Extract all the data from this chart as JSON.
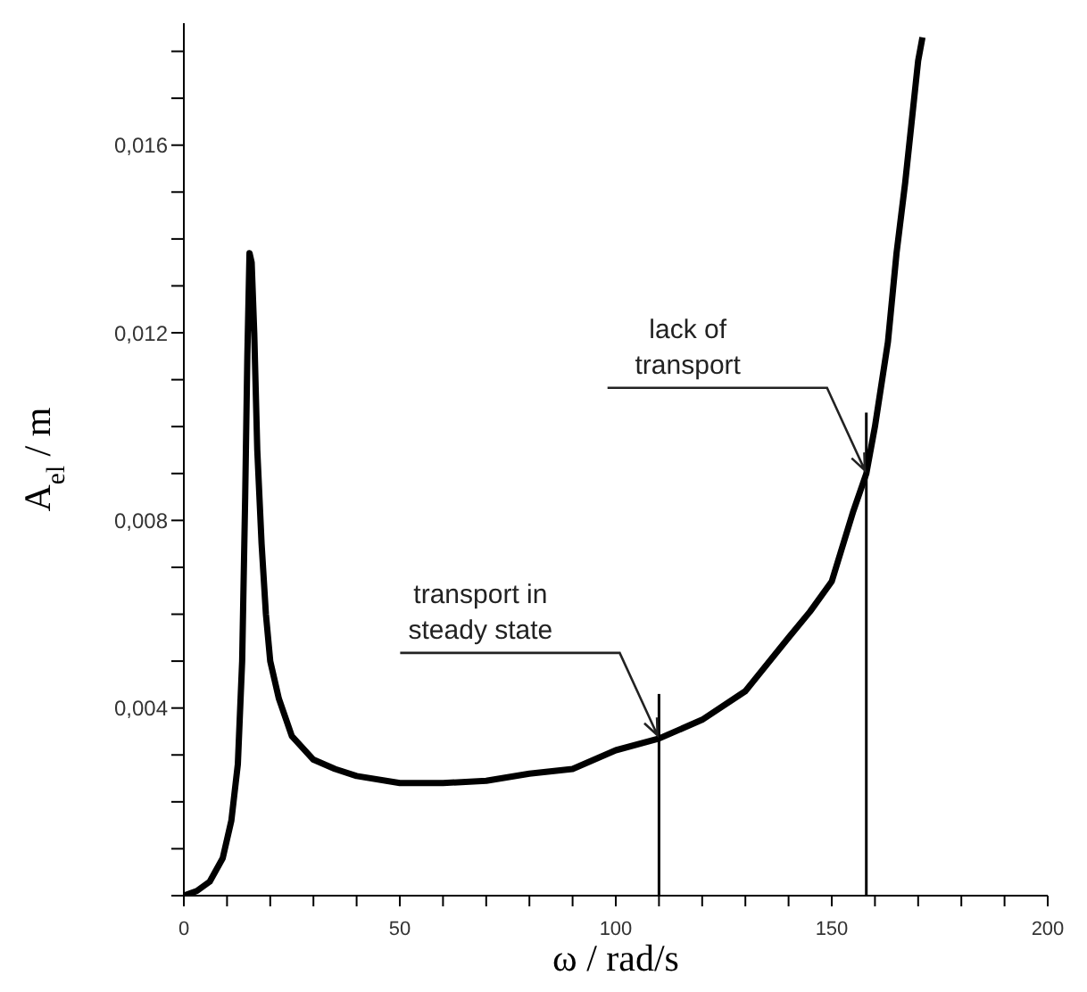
{
  "chart_data": {
    "type": "line",
    "xlabel": "ω / rad/s",
    "ylabel": "A$_{el}$ / m",
    "xlim": [
      0,
      200
    ],
    "ylim": [
      0,
      0.0186
    ],
    "xticks": [
      0,
      {
        "value": 10,
        "label": null
      },
      {
        "value": 20,
        "label": null
      },
      {
        "value": 30,
        "label": null
      },
      {
        "value": 40,
        "label": null
      },
      50,
      {
        "value": 60,
        "label": null
      },
      {
        "value": 70,
        "label": null
      },
      {
        "value": 80,
        "label": null
      },
      {
        "value": 90,
        "label": null
      },
      100,
      {
        "value": 110,
        "label": null
      },
      {
        "value": 120,
        "label": null
      },
      {
        "value": 130,
        "label": null
      },
      {
        "value": 140,
        "label": null
      },
      150,
      {
        "value": 160,
        "label": null
      },
      {
        "value": 170,
        "label": null
      },
      {
        "value": 180,
        "label": null
      },
      {
        "value": 190,
        "label": null
      },
      200
    ],
    "yticks": [
      {
        "value": 0,
        "label": null
      },
      {
        "value": 0.001,
        "label": null
      },
      {
        "value": 0.002,
        "label": null
      },
      {
        "value": 0.003,
        "label": null
      },
      {
        "value": 0.004,
        "label": "0,004"
      },
      {
        "value": 0.005,
        "label": null
      },
      {
        "value": 0.006,
        "label": null
      },
      {
        "value": 0.007,
        "label": null
      },
      {
        "value": 0.008,
        "label": "0,008"
      },
      {
        "value": 0.009,
        "label": null
      },
      {
        "value": 0.01,
        "label": null
      },
      {
        "value": 0.011,
        "label": null
      },
      {
        "value": 0.012,
        "label": "0,012"
      },
      {
        "value": 0.013,
        "label": null
      },
      {
        "value": 0.014,
        "label": null
      },
      {
        "value": 0.015,
        "label": null
      },
      {
        "value": 0.016,
        "label": "0,016"
      },
      {
        "value": 0.017,
        "label": null
      },
      {
        "value": 0.018,
        "label": null
      }
    ],
    "marker": "none",
    "line_style": "solid",
    "series": [
      {
        "color": "#000000",
        "x": [
          0,
          3,
          6,
          9,
          11,
          12.5,
          13.5,
          14.2,
          14.7,
          15.2,
          15.7,
          16.3,
          17,
          18,
          19,
          20,
          22,
          25,
          30,
          35,
          40,
          50,
          60,
          70,
          80,
          90,
          100,
          110,
          120,
          130,
          140,
          145,
          150,
          155,
          158,
          160,
          163,
          165,
          167,
          170,
          171
        ],
        "values": [
          0,
          0.0001,
          0.0003,
          0.0008,
          0.0016,
          0.0028,
          0.005,
          0.0085,
          0.0115,
          0.0137,
          0.0135,
          0.012,
          0.0095,
          0.0075,
          0.006,
          0.005,
          0.0042,
          0.0034,
          0.0029,
          0.0027,
          0.00255,
          0.0024,
          0.0024,
          0.00245,
          0.0026,
          0.0027,
          0.0031,
          0.00335,
          0.00375,
          0.00436,
          0.0055,
          0.00606,
          0.0067,
          0.0082,
          0.009,
          0.01,
          0.0118,
          0.0137,
          0.0152,
          0.0178,
          0.0183
        ]
      },
      {
        "type": "line",
        "color": "#000000",
        "x": [
          110,
          110
        ],
        "values": [
          0,
          0.0043
        ]
      },
      {
        "type": "line",
        "color": "#000000",
        "x": [
          158,
          158
        ],
        "values": [
          0,
          0.0103
        ]
      }
    ],
    "annotations": [
      {
        "text": "transport in steady state",
        "x": 110,
        "y": 0.00335
      },
      {
        "text": "lack of transport",
        "x": 158,
        "y": 0.009
      }
    ]
  }
}
